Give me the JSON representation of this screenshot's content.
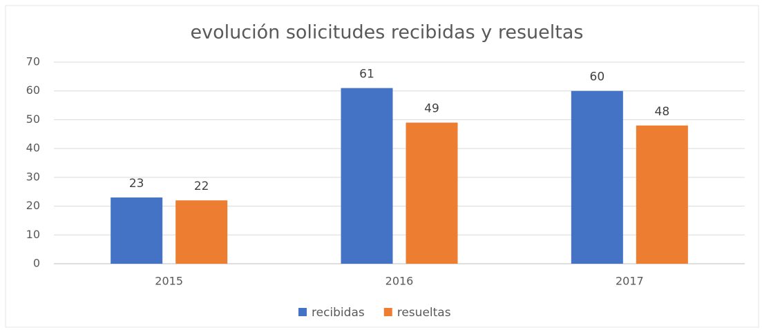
{
  "chart_data": {
    "type": "bar",
    "title": "evolución solicitudes recibidas y resueltas",
    "categories": [
      "2015",
      "2016",
      "2017"
    ],
    "series": [
      {
        "name": "recibidas",
        "color": "#4472c4",
        "values": [
          23,
          61,
          60
        ]
      },
      {
        "name": "resueltas",
        "color": "#ed7d31",
        "values": [
          22,
          49,
          48
        ]
      }
    ],
    "ylim": [
      0,
      70
    ],
    "yticks": [
      0,
      10,
      20,
      30,
      40,
      50,
      60,
      70
    ],
    "grid": true,
    "legend": "bottom",
    "data_labels": true
  }
}
